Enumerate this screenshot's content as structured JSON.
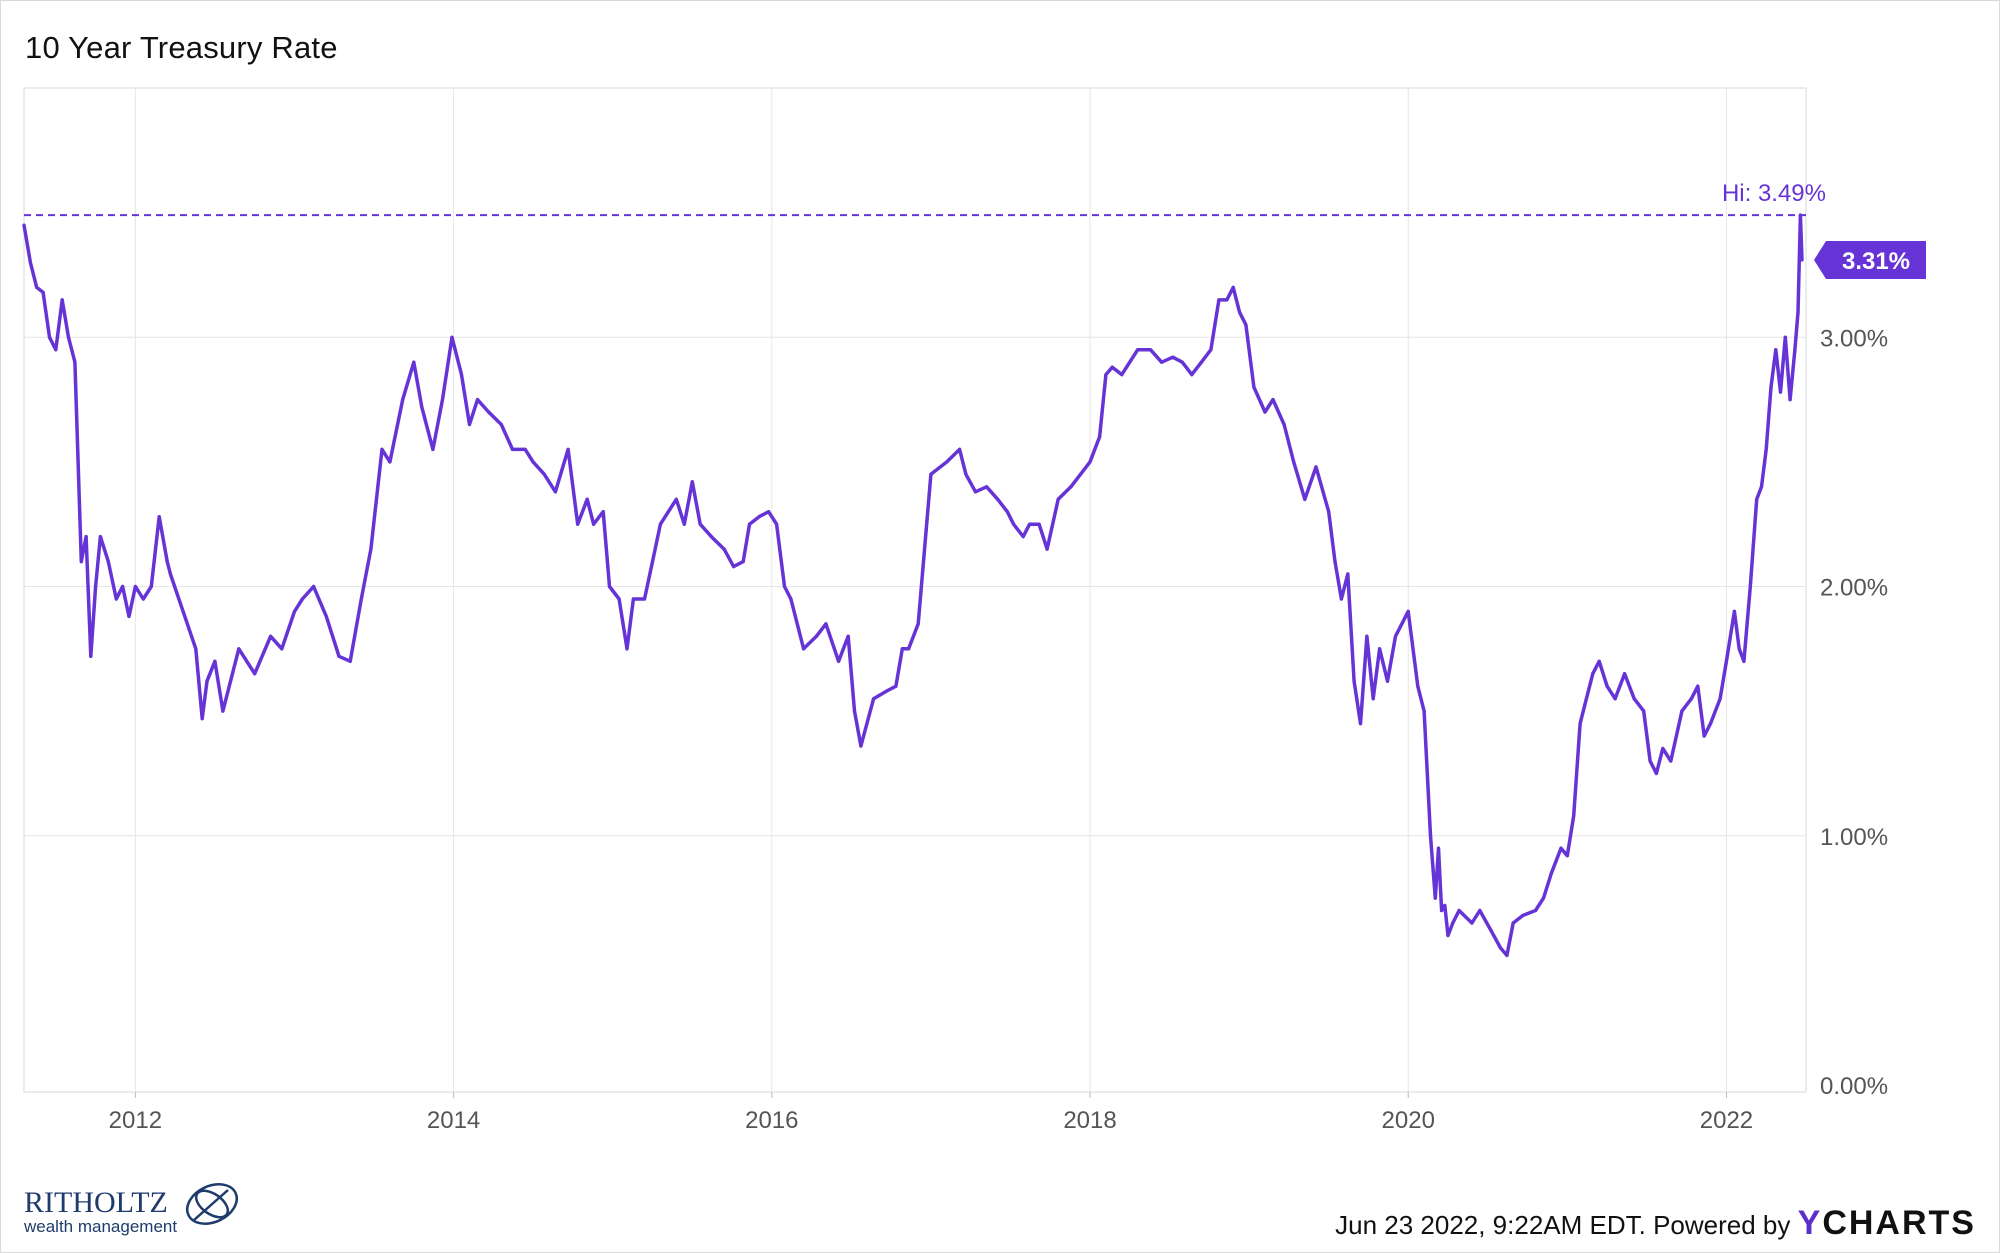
{
  "title": "10 Year Treasury Rate",
  "hi_label": "Hi: 3.49%",
  "current_label": "3.31%",
  "footer": {
    "timestamp": "Jun 23 2022, 9:22AM EDT.",
    "powered_by": "Powered by",
    "brand_y": "Y",
    "brand_rest": "CHARTS",
    "logo_name": "RITHOLTZ",
    "logo_sub": "wealth management"
  },
  "colors": {
    "line": "#6634d6",
    "badge": "#6634d6",
    "grid": "#e6e6e6",
    "axis_text": "#555555"
  },
  "chart_data": {
    "type": "line",
    "title": "10 Year Treasury Rate",
    "xlabel": "",
    "ylabel": "",
    "ylim": [
      0,
      4.0
    ],
    "xlim": [
      2011.3,
      2022.5
    ],
    "x_ticks": [
      2012,
      2014,
      2016,
      2018,
      2020,
      2022
    ],
    "x_tick_labels": [
      "2012",
      "2014",
      "2016",
      "2018",
      "2020",
      "2022"
    ],
    "y_ticks": [
      0,
      1,
      2,
      3
    ],
    "y_tick_labels": [
      "0.00%",
      "1.00%",
      "2.00%",
      "3.00%"
    ],
    "grid": true,
    "high": 3.49,
    "last": 3.31,
    "series": [
      {
        "x": [
          2011.3,
          2011.34,
          2011.38,
          2011.42,
          2011.46,
          2011.5,
          2011.54,
          2011.58,
          2011.62,
          2011.66,
          2011.69,
          2011.72,
          2011.75,
          2011.78,
          2011.83,
          2011.88,
          2011.92,
          2011.96,
          2012.0,
          2012.05,
          2012.1,
          2012.15,
          2012.2,
          2012.22,
          2012.3,
          2012.38,
          2012.42,
          2012.45,
          2012.5,
          2012.55,
          2012.65,
          2012.75,
          2012.85,
          2012.92,
          2013.0,
          2013.05,
          2013.12,
          2013.2,
          2013.28,
          2013.35,
          2013.42,
          2013.48,
          2013.55,
          2013.6,
          2013.68,
          2013.75,
          2013.8,
          2013.87,
          2013.93,
          2013.99,
          2014.05,
          2014.1,
          2014.15,
          2014.22,
          2014.3,
          2014.37,
          2014.45,
          2014.5,
          2014.57,
          2014.64,
          2014.72,
          2014.78,
          2014.84,
          2014.88,
          2014.94,
          2014.98,
          2015.04,
          2015.09,
          2015.13,
          2015.2,
          2015.25,
          2015.3,
          2015.4,
          2015.45,
          2015.5,
          2015.55,
          2015.62,
          2015.7,
          2015.76,
          2015.82,
          2015.86,
          2015.92,
          2015.98,
          2016.03,
          2016.08,
          2016.12,
          2016.2,
          2016.28,
          2016.34,
          2016.42,
          2016.48,
          2016.52,
          2016.56,
          2016.64,
          2016.72,
          2016.78,
          2016.82,
          2016.86,
          2016.92,
          2017.0,
          2017.1,
          2017.18,
          2017.22,
          2017.28,
          2017.35,
          2017.42,
          2017.48,
          2017.52,
          2017.58,
          2017.62,
          2017.68,
          2017.73,
          2017.8,
          2017.88,
          2017.94,
          2018.0,
          2018.06,
          2018.1,
          2018.14,
          2018.2,
          2018.3,
          2018.38,
          2018.45,
          2018.52,
          2018.58,
          2018.64,
          2018.7,
          2018.76,
          2018.81,
          2018.86,
          2018.9,
          2018.94,
          2018.98,
          2019.03,
          2019.1,
          2019.15,
          2019.22,
          2019.28,
          2019.35,
          2019.42,
          2019.5,
          2019.54,
          2019.58,
          2019.62,
          2019.66,
          2019.7,
          2019.74,
          2019.78,
          2019.82,
          2019.87,
          2019.92,
          2020.0,
          2020.06,
          2020.1,
          2020.14,
          2020.17,
          2020.19,
          2020.21,
          2020.23,
          2020.25,
          2020.28,
          2020.32,
          2020.4,
          2020.45,
          2020.52,
          2020.58,
          2020.62,
          2020.66,
          2020.72,
          2020.8,
          2020.85,
          2020.9,
          2020.96,
          2021.0,
          2021.04,
          2021.08,
          2021.12,
          2021.16,
          2021.2,
          2021.25,
          2021.3,
          2021.36,
          2021.42,
          2021.48,
          2021.52,
          2021.56,
          2021.6,
          2021.65,
          2021.72,
          2021.78,
          2021.82,
          2021.86,
          2021.9,
          2021.96,
          2022.0,
          2022.05,
          2022.08,
          2022.11,
          2022.15,
          2022.19,
          2022.22,
          2022.25,
          2022.28,
          2022.31,
          2022.34,
          2022.37,
          2022.4,
          2022.43,
          2022.45,
          2022.465,
          2022.475
        ],
        "values": [
          3.45,
          3.3,
          3.2,
          3.18,
          3.0,
          2.95,
          3.15,
          3.0,
          2.9,
          2.1,
          2.2,
          1.72,
          2.0,
          2.2,
          2.1,
          1.95,
          2.0,
          1.88,
          2.0,
          1.95,
          2.0,
          2.28,
          2.1,
          2.05,
          1.9,
          1.75,
          1.47,
          1.62,
          1.7,
          1.5,
          1.75,
          1.65,
          1.8,
          1.75,
          1.9,
          1.95,
          2.0,
          1.88,
          1.72,
          1.7,
          1.95,
          2.15,
          2.55,
          2.5,
          2.75,
          2.9,
          2.72,
          2.55,
          2.75,
          3.0,
          2.85,
          2.65,
          2.75,
          2.7,
          2.65,
          2.55,
          2.55,
          2.5,
          2.45,
          2.38,
          2.55,
          2.25,
          2.35,
          2.25,
          2.3,
          2.0,
          1.95,
          1.75,
          1.95,
          1.95,
          2.1,
          2.25,
          2.35,
          2.25,
          2.42,
          2.25,
          2.2,
          2.15,
          2.08,
          2.1,
          2.25,
          2.28,
          2.3,
          2.25,
          2.0,
          1.95,
          1.75,
          1.8,
          1.85,
          1.7,
          1.8,
          1.5,
          1.36,
          1.55,
          1.58,
          1.6,
          1.75,
          1.75,
          1.85,
          2.45,
          2.5,
          2.55,
          2.45,
          2.38,
          2.4,
          2.35,
          2.3,
          2.25,
          2.2,
          2.25,
          2.25,
          2.15,
          2.35,
          2.4,
          2.45,
          2.5,
          2.6,
          2.85,
          2.88,
          2.85,
          2.95,
          2.95,
          2.9,
          2.92,
          2.9,
          2.85,
          2.9,
          2.95,
          3.15,
          3.15,
          3.2,
          3.1,
          3.05,
          2.8,
          2.7,
          2.75,
          2.65,
          2.5,
          2.35,
          2.48,
          2.3,
          2.1,
          1.95,
          2.05,
          1.62,
          1.45,
          1.8,
          1.55,
          1.75,
          1.62,
          1.8,
          1.9,
          1.6,
          1.5,
          1.0,
          0.75,
          0.95,
          0.7,
          0.72,
          0.6,
          0.65,
          0.7,
          0.65,
          0.7,
          0.62,
          0.55,
          0.52,
          0.65,
          0.68,
          0.7,
          0.75,
          0.85,
          0.95,
          0.92,
          1.08,
          1.45,
          1.55,
          1.65,
          1.7,
          1.6,
          1.55,
          1.65,
          1.55,
          1.5,
          1.3,
          1.25,
          1.35,
          1.3,
          1.5,
          1.55,
          1.6,
          1.4,
          1.45,
          1.55,
          1.7,
          1.9,
          1.75,
          1.7,
          2.0,
          2.35,
          2.4,
          2.55,
          2.8,
          2.95,
          2.78,
          3.0,
          2.75,
          2.95,
          3.1,
          3.49,
          3.31
        ]
      }
    ]
  }
}
